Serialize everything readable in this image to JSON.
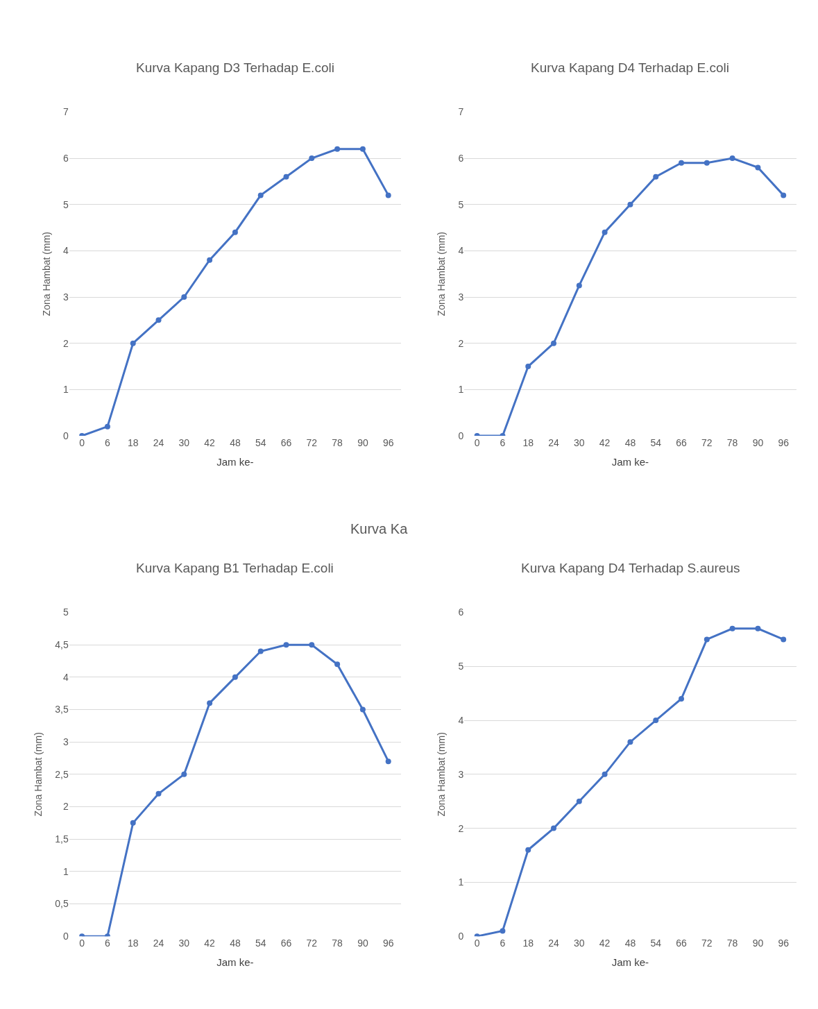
{
  "chart_data": [
    {
      "type": "line",
      "title": "Kurva Kapang D3 Terhadap E.coli",
      "xlabel": "Jam ke-",
      "ylabel": "Zona Hambat (mm)",
      "categories": [
        "0",
        "6",
        "18",
        "24",
        "30",
        "42",
        "48",
        "54",
        "66",
        "72",
        "78",
        "90",
        "96"
      ],
      "series": [
        {
          "color": "#4472c4",
          "values": [
            0,
            0.2,
            2,
            2.5,
            3,
            3.8,
            4.4,
            5.2,
            5.6,
            6,
            6.2,
            6.2,
            5.2
          ]
        }
      ],
      "ylim": [
        0,
        7
      ],
      "yticks": [
        0,
        1,
        2,
        3,
        4,
        5,
        6,
        7
      ],
      "grid": "y",
      "marker": "circle",
      "line_style": "solid",
      "annotations": [
        "Kurva Ka"
      ]
    },
    {
      "type": "line",
      "title": "Kurva Kapang D4 Terhadap E.coli",
      "xlabel": "Jam ke-",
      "ylabel": "Zona Hambat (mm)",
      "categories": [
        "0",
        "6",
        "18",
        "24",
        "30",
        "42",
        "48",
        "54",
        "66",
        "72",
        "78",
        "90",
        "96"
      ],
      "series": [
        {
          "color": "#4472c4",
          "values": [
            0,
            0,
            1.5,
            2,
            3.25,
            4.4,
            5,
            5.6,
            5.9,
            5.9,
            6,
            5.8,
            5.2
          ]
        }
      ],
      "ylim": [
        0,
        7
      ],
      "yticks": [
        0,
        1,
        2,
        3,
        4,
        5,
        6,
        7
      ],
      "grid": "y",
      "marker": "circle",
      "line_style": "solid"
    },
    {
      "type": "line",
      "title": "Kurva Kapang B1 Terhadap E.coli",
      "xlabel": "Jam ke-",
      "ylabel": "Zona Hambat (mm)",
      "categories": [
        "0",
        "6",
        "18",
        "24",
        "30",
        "42",
        "48",
        "54",
        "66",
        "72",
        "78",
        "90",
        "96"
      ],
      "series": [
        {
          "color": "#4472c4",
          "values": [
            0,
            0,
            1.75,
            2.2,
            2.5,
            3.6,
            4,
            4.4,
            4.5,
            4.5,
            4.2,
            3.5,
            2.7
          ]
        }
      ],
      "ylim": [
        0,
        5
      ],
      "yticks": [
        0,
        {
          "value": 0.5,
          "label": "0,5"
        },
        1,
        {
          "value": 1.5,
          "label": "1,5"
        },
        2,
        {
          "value": 2.5,
          "label": "2,5"
        },
        3,
        {
          "value": 3.5,
          "label": "3,5"
        },
        4,
        {
          "value": 4.5,
          "label": "4,5"
        },
        5
      ],
      "grid": "y",
      "marker": "circle",
      "line_style": "solid"
    },
    {
      "type": "line",
      "title": "Kurva Kapang D4 Terhadap S.aureus",
      "xlabel": "Jam ke-",
      "ylabel": "Zona Hambat (mm)",
      "categories": [
        "0",
        "6",
        "18",
        "24",
        "30",
        "42",
        "48",
        "54",
        "66",
        "72",
        "78",
        "90",
        "96"
      ],
      "series": [
        {
          "color": "#4472c4",
          "values": [
            0,
            0.1,
            1.6,
            2,
            2.5,
            3,
            3.6,
            4,
            4.4,
            5.5,
            5.7,
            5.7,
            5.5
          ]
        }
      ],
      "ylim": [
        0,
        6
      ],
      "yticks": [
        0,
        1,
        2,
        3,
        4,
        5,
        6
      ],
      "grid": "y",
      "marker": "circle",
      "line_style": "solid"
    }
  ]
}
